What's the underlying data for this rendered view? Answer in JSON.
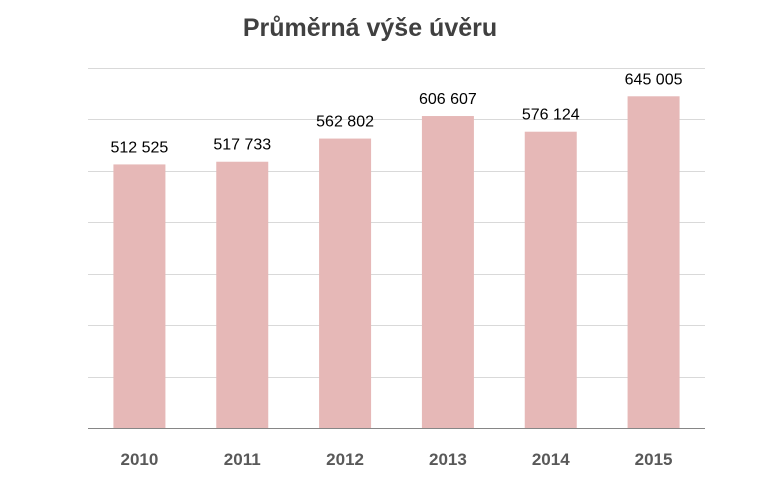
{
  "chart_data": {
    "type": "bar",
    "title": "Průměrná výše úvěru",
    "categories": [
      "2010",
      "2011",
      "2012",
      "2013",
      "2014",
      "2015"
    ],
    "values": [
      512525,
      517733,
      562802,
      606607,
      576124,
      645005
    ],
    "value_labels": [
      "512 525",
      "517 733",
      "562 802",
      "606 607",
      "576 124",
      "645 005"
    ],
    "ylim": [
      0,
      700000
    ],
    "grid": true,
    "legend": "none",
    "colors": {
      "bar": "#e6b8b7",
      "grid": "#d9d9d9",
      "axis": "#868686"
    }
  }
}
